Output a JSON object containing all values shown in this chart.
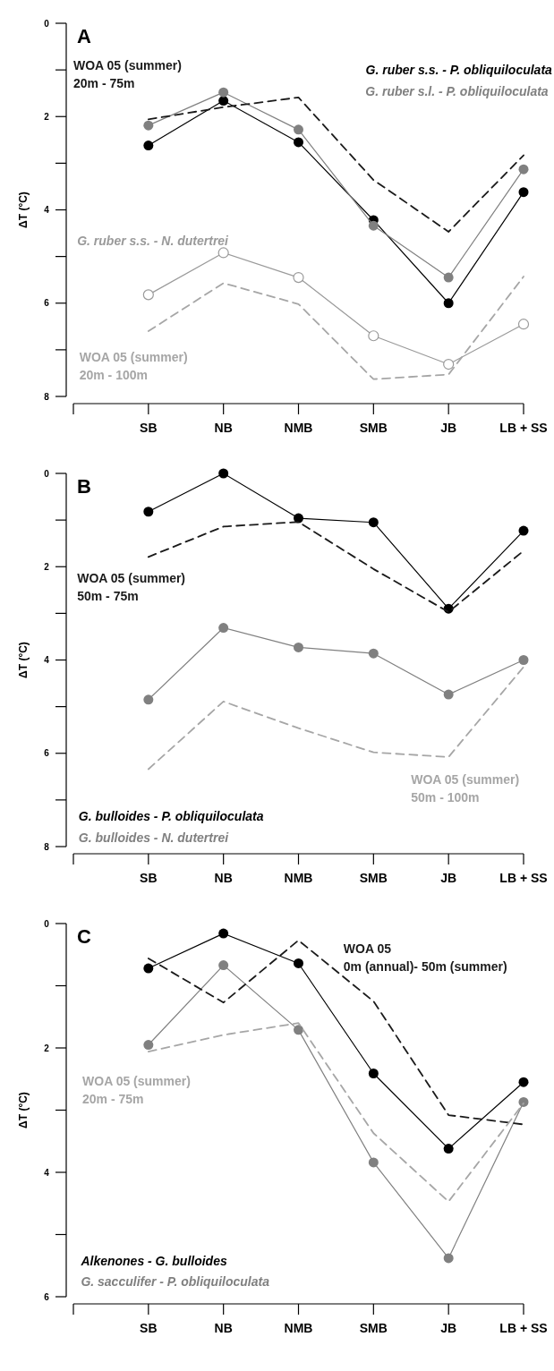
{
  "chart_data": [
    {
      "type": "line",
      "title": "A",
      "ylabel": "ΔT (°C)",
      "categories": [
        null,
        "SB",
        "NB",
        "NMB",
        "SMB",
        "JB",
        "LB + SS"
      ],
      "ylim": [
        8,
        0
      ],
      "yticks": [
        0,
        2,
        4,
        6,
        8
      ],
      "series": [
        {
          "name": "G. ruber s.s. - P. obliquiloculata",
          "color": "#000000",
          "marker": "circle",
          "line_style": "solid",
          "values": [
            null,
            2.62,
            1.66,
            2.55,
            4.22,
            6.0,
            3.62
          ]
        },
        {
          "name": "G. ruber s.l. - P. obliquiloculata",
          "color": "#808080",
          "marker": "circle",
          "line_style": "solid",
          "values": [
            null,
            2.19,
            1.48,
            2.28,
            4.34,
            5.45,
            3.13
          ]
        },
        {
          "name": "G. ruber s.s. - N. dutertrei",
          "color": "#9a9a9a",
          "marker": "circle-open",
          "line_style": "solid",
          "values": [
            null,
            5.82,
            4.92,
            5.45,
            6.7,
            7.31,
            6.45
          ]
        },
        {
          "name": "WOA 05 (summer)\n20m - 75m",
          "color": "#1a1a1a",
          "marker": "none",
          "line_style": "dashed",
          "values": [
            null,
            2.06,
            1.8,
            1.59,
            3.36,
            4.47,
            2.83
          ]
        },
        {
          "name": "WOA 05 (summer)\n20m - 100m",
          "color": "#a6a6a6",
          "marker": "none",
          "line_style": "dashed",
          "values": [
            null,
            6.6,
            5.57,
            6.02,
            7.63,
            7.53,
            5.43
          ]
        }
      ]
    },
    {
      "type": "line",
      "title": "B",
      "ylabel": "ΔT (°C)",
      "categories": [
        null,
        "SB",
        "NB",
        "NMB",
        "SMB",
        "JB",
        "LB + SS"
      ],
      "ylim": [
        8,
        0
      ],
      "yticks": [
        0,
        2,
        4,
        6,
        8
      ],
      "series": [
        {
          "name": "G. bulloides - P. obliquiloculata",
          "color": "#000000",
          "marker": "circle",
          "line_style": "solid",
          "values": [
            null,
            0.82,
            0,
            0.96,
            1.05,
            2.9,
            1.23
          ]
        },
        {
          "name": "G. bulloides - N. dutertrei",
          "color": "#808080",
          "marker": "circle",
          "line_style": "solid",
          "values": [
            null,
            4.85,
            3.31,
            3.73,
            3.86,
            4.74,
            4.0
          ]
        },
        {
          "name": "WOA 05 (summer)\n50m - 75m",
          "color": "#1a1a1a",
          "marker": "none",
          "line_style": "dashed",
          "values": [
            null,
            1.79,
            1.14,
            1.04,
            2.05,
            2.97,
            1.66
          ]
        },
        {
          "name": "WOA 05 (summer)\n50m - 100m",
          "color": "#a6a6a6",
          "marker": "none",
          "line_style": "dashed",
          "values": [
            null,
            6.34,
            4.89,
            5.46,
            5.98,
            6.08,
            4.15
          ]
        }
      ]
    },
    {
      "type": "line",
      "title": "C",
      "ylabel": "ΔT (°C)",
      "categories": [
        null,
        "SB",
        "NB",
        "NMB",
        "SMB",
        "JB",
        "LB + SS"
      ],
      "ylim": [
        6,
        0
      ],
      "yticks": [
        0,
        2,
        4,
        6
      ],
      "series": [
        {
          "name": "Alkenones - G. bulloides",
          "color": "#000000",
          "marker": "circle",
          "line_style": "solid",
          "values": [
            null,
            0.72,
            0.16,
            0.64,
            2.41,
            3.62,
            2.55
          ]
        },
        {
          "name": "G. sacculifer - P. obliquiloculata",
          "color": "#808080",
          "marker": "circle",
          "line_style": "solid",
          "values": [
            null,
            1.95,
            0.67,
            1.71,
            3.84,
            5.38,
            2.87
          ]
        },
        {
          "name": "WOA 05\n0m (annual)- 50m (summer)",
          "color": "#1a1a1a",
          "marker": "none",
          "line_style": "dashed",
          "values": [
            null,
            0.56,
            1.27,
            0.27,
            1.25,
            3.08,
            3.23
          ]
        },
        {
          "name": "WOA 05 (summer)\n20m - 75m",
          "color": "#a6a6a6",
          "marker": "none",
          "line_style": "dashed",
          "values": [
            null,
            2.06,
            1.79,
            1.6,
            3.37,
            4.47,
            2.89
          ]
        }
      ]
    }
  ]
}
